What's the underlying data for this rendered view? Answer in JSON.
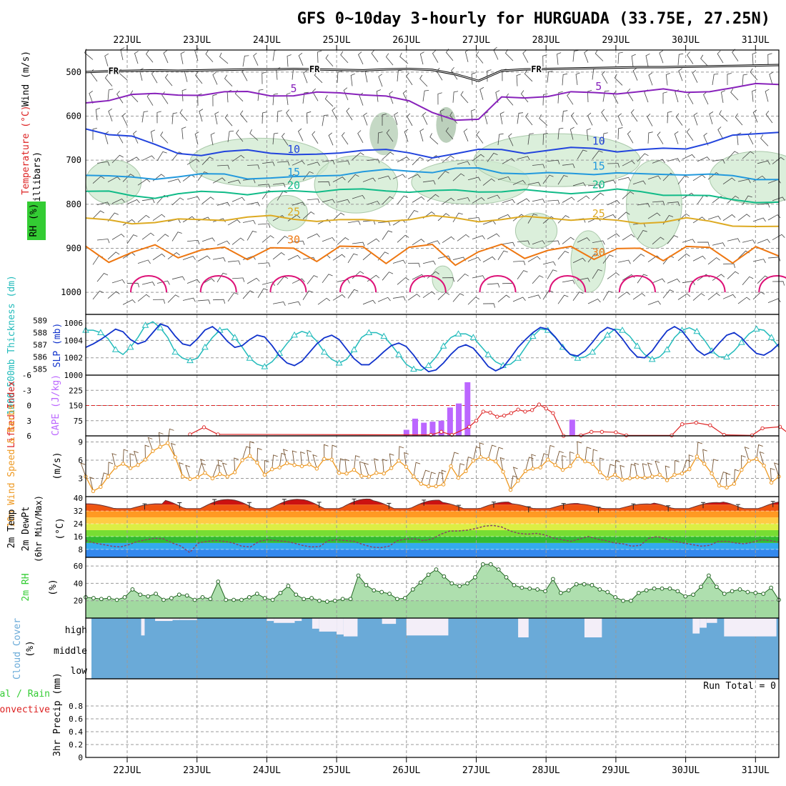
{
  "title": "GFS 0~10day 3-hourly for HURGUADA (33.75E, 27.25N)",
  "dates": [
    "22JUL",
    "23JUL",
    "24JUL",
    "25JUL",
    "26JUL",
    "27JUL",
    "28JUL",
    "29JUL",
    "30JUL",
    "31JUL"
  ],
  "colors": {
    "frame": "#000000",
    "grid": "#999999",
    "cyan": "#22bbbb",
    "blue": "#1133cc",
    "purple": "#bb66ff",
    "red": "#dd2222",
    "orange": "#ee9922",
    "brown": "#775533",
    "green": "#33cc33",
    "rh_fill": "#cfe9cf",
    "cloud": "#6aaad8",
    "cloud_clear": "#f3eef8",
    "t5": "#8822bb",
    "t10": "#2244dd",
    "t15": "#2299dd",
    "t20": "#11bb88",
    "t25": "#ddaa22",
    "t30": "#ee7711",
    "t35": "#dd1177"
  },
  "chart_data": [
    {
      "type": "contour",
      "panel": "upper-air",
      "labels": {
        "wind": "Wind (m/s)",
        "temperature": "Temperature (°C)",
        "rh": "RH (%)",
        "axis": "(millibars)"
      },
      "yticks": [
        500,
        600,
        700,
        800,
        900,
        1000
      ],
      "ylim": [
        450,
        1050
      ],
      "freezing_label": "FR",
      "freezing_level_mb": [
        500,
        498,
        497,
        496,
        497,
        496,
        495,
        494,
        494,
        493,
        494,
        495,
        496,
        494,
        493,
        495,
        505,
        520,
        497,
        494,
        493,
        492,
        491,
        490,
        489,
        489,
        488,
        487,
        486,
        485,
        484
      ],
      "isotherms": [
        {
          "t": 5,
          "label": "5",
          "mb": [
            570,
            560,
            552,
            553,
            550,
            549,
            548,
            547,
            550,
            552,
            550,
            548,
            547,
            555,
            570,
            590,
            605,
            610,
            560,
            555,
            553,
            549,
            548,
            545,
            544,
            543,
            545,
            540,
            538,
            530,
            525
          ]
        },
        {
          "t": 10,
          "label": "10",
          "mb": [
            625,
            640,
            650,
            665,
            680,
            690,
            685,
            675,
            680,
            690,
            690,
            680,
            675,
            680,
            685,
            690,
            685,
            680,
            675,
            680,
            680,
            675,
            670,
            678,
            680,
            675,
            670,
            660,
            648,
            640,
            632
          ]
        },
        {
          "t": 15,
          "label": "15",
          "mb": [
            730,
            738,
            742,
            740,
            735,
            735,
            733,
            738,
            740,
            742,
            735,
            730,
            728,
            725,
            722,
            725,
            722,
            720,
            725,
            730,
            733,
            730,
            728,
            730,
            735,
            730,
            730,
            735,
            738,
            740,
            742
          ]
        },
        {
          "t": 20,
          "label": "20",
          "mb": [
            770,
            775,
            780,
            782,
            778,
            775,
            770,
            775,
            775,
            772,
            768,
            765,
            770,
            770,
            768,
            770,
            772,
            770,
            768,
            770,
            775,
            772,
            770,
            770,
            772,
            775,
            780,
            785,
            788,
            792,
            798
          ]
        },
        {
          "t": 25,
          "label": "25",
          "mb": [
            835,
            838,
            840,
            840,
            838,
            835,
            832,
            830,
            830,
            832,
            835,
            838,
            838,
            835,
            833,
            830,
            832,
            835,
            835,
            832,
            830,
            832,
            835,
            840,
            840,
            838,
            835,
            840,
            845,
            850,
            855
          ]
        },
        {
          "t": 30,
          "label": "30",
          "mb": [
            900,
            930,
            905,
            895,
            925,
            900,
            895,
            930,
            900,
            895,
            930,
            900,
            895,
            930,
            900,
            895,
            935,
            905,
            895,
            925,
            900,
            895,
            930,
            900,
            895,
            930,
            900,
            895,
            930,
            900,
            920
          ]
        }
      ]
    },
    {
      "type": "line",
      "panel": "pressure",
      "labels": {
        "thickness": "1000-500mb Thickness (dm)",
        "slp": "SLP (mb)"
      },
      "thickness_ticks": [
        589,
        588,
        587,
        586,
        585
      ],
      "thickness_ylim": [
        584.5,
        589.5
      ],
      "slp_ticks": [
        1006,
        1004,
        1002,
        1000
      ],
      "slp_ylim": [
        1000,
        1007
      ],
      "thickness": [
        588.2,
        588.2,
        588.0,
        587.5,
        586.6,
        586.2,
        586.8,
        587.6,
        588.6,
        588.9,
        588.4,
        587.6,
        586.4,
        585.9,
        585.7,
        585.9,
        586.8,
        587.6,
        588.2,
        588.3,
        587.6,
        586.8,
        585.9,
        585.4,
        585.2,
        585.6,
        586.3,
        587.1,
        587.8,
        588.1,
        587.9,
        587.3,
        586.4,
        585.8,
        585.5,
        585.8,
        586.6,
        587.6,
        588.0,
        588.0,
        587.7,
        587.0,
        586.2,
        585.4,
        585.0,
        584.9,
        585.3,
        586.0,
        586.9,
        587.6,
        587.9,
        587.9,
        587.6,
        586.9,
        586.2,
        585.6,
        585.3,
        585.4,
        585.9,
        586.8,
        587.7,
        588.3,
        588.2,
        587.6,
        586.8,
        586.2,
        585.9,
        586.0,
        586.4,
        587.1,
        587.8,
        588.3,
        588.2,
        587.7,
        586.9,
        586.2,
        585.8,
        586.0,
        586.6,
        587.6,
        588.2,
        588.4,
        588.1,
        587.4,
        586.5,
        586.0,
        586.0,
        586.5,
        587.2,
        587.9,
        588.3,
        588.2,
        587.6,
        586.8
      ],
      "slp": [
        1003.2,
        1003.6,
        1004.1,
        1004.7,
        1005.3,
        1005.0,
        1004.1,
        1003.6,
        1003.9,
        1004.9,
        1005.9,
        1005.6,
        1004.5,
        1003.6,
        1003.4,
        1004.2,
        1005.2,
        1005.6,
        1004.9,
        1003.9,
        1003.2,
        1003.4,
        1004.1,
        1004.6,
        1004.4,
        1003.4,
        1002.2,
        1001.4,
        1001.1,
        1001.6,
        1002.6,
        1003.6,
        1004.3,
        1004.6,
        1004.1,
        1003.0,
        1001.9,
        1001.2,
        1001.2,
        1001.9,
        1002.7,
        1003.4,
        1003.7,
        1003.3,
        1002.3,
        1001.1,
        1000.4,
        1000.6,
        1001.4,
        1002.4,
        1003.2,
        1003.5,
        1003.1,
        1002.1,
        1001.0,
        1000.5,
        1000.9,
        1002.0,
        1003.2,
        1004.1,
        1004.9,
        1005.5,
        1005.3,
        1004.4,
        1003.3,
        1002.4,
        1002.2,
        1002.8,
        1003.8,
        1004.9,
        1005.5,
        1005.2,
        1004.2,
        1003.0,
        1002.1,
        1002.0,
        1002.8,
        1004.0,
        1005.1,
        1005.6,
        1005.1,
        1004.0,
        1002.9,
        1002.3,
        1002.7,
        1003.7,
        1004.6,
        1004.9,
        1004.3,
        1003.3,
        1002.5,
        1002.3,
        1002.8,
        1003.6
      ]
    },
    {
      "type": "bar",
      "panel": "stability",
      "labels": {
        "li": "Lifted Index",
        "cape": "CAPE (J/kg)"
      },
      "li_ticks": [
        "-6",
        "-3",
        "0",
        "3",
        "6"
      ],
      "cape_ticks": [
        225,
        150,
        75
      ],
      "cape_ylim": [
        0,
        300
      ],
      "cape_dates": [
        "26JUL 03Z",
        "26JUL 06Z",
        "26JUL 09Z",
        "26JUL 12Z",
        "26JUL 15Z",
        "26JUL 18Z",
        "26JUL 21Z",
        "27JUL 00Z",
        "28JUL 06Z",
        "28JUL 09Z"
      ],
      "cape": [
        30,
        85,
        65,
        70,
        75,
        140,
        160,
        265,
        80,
        5
      ],
      "li_curve": [
        {
          "t": 0.9,
          "li": 5.7
        },
        {
          "t": 1.1,
          "li": 4.3
        },
        {
          "t": 1.3,
          "li": 5.7
        },
        {
          "t": 4.35,
          "li": 5.8
        },
        {
          "t": 4.5,
          "li": 5.2
        },
        {
          "t": 4.65,
          "li": 5.8
        },
        {
          "t": 4.9,
          "li": 4.2
        },
        {
          "t": 5.0,
          "li": 3.0
        },
        {
          "t": 5.1,
          "li": 1.2
        },
        {
          "t": 5.2,
          "li": 1.4
        },
        {
          "t": 5.3,
          "li": 2.2
        },
        {
          "t": 5.4,
          "li": 2.0
        },
        {
          "t": 5.5,
          "li": 1.5
        },
        {
          "t": 5.6,
          "li": 0.8
        },
        {
          "t": 5.7,
          "li": 1.2
        },
        {
          "t": 5.8,
          "li": 0.9
        },
        {
          "t": 5.9,
          "li": -0.2
        },
        {
          "t": 6.0,
          "li": 0.6
        },
        {
          "t": 6.1,
          "li": 1.5
        },
        {
          "t": 6.25,
          "li": 6.0
        },
        {
          "t": 6.5,
          "li": 5.9
        },
        {
          "t": 6.65,
          "li": 5.2
        },
        {
          "t": 6.8,
          "li": 5.2
        },
        {
          "t": 7.0,
          "li": 5.3
        },
        {
          "t": 7.15,
          "li": 5.9
        },
        {
          "t": 7.8,
          "li": 5.9
        },
        {
          "t": 7.95,
          "li": 3.7
        },
        {
          "t": 8.15,
          "li": 3.4
        },
        {
          "t": 8.35,
          "li": 3.9
        },
        {
          "t": 8.55,
          "li": 5.8
        },
        {
          "t": 8.95,
          "li": 5.9
        },
        {
          "t": 9.1,
          "li": 4.5
        },
        {
          "t": 9.35,
          "li": 4.2
        },
        {
          "t": 9.5,
          "li": 5.8
        },
        {
          "t": 10.0,
          "li": 5.9
        },
        {
          "t": 10.1,
          "li": 5.5
        },
        {
          "t": 10.25,
          "li": 5.9
        }
      ]
    },
    {
      "type": "line",
      "panel": "wind10m",
      "labels": {
        "title": "10m Wind Speed & Barbs",
        "units": "(m/s)"
      },
      "yticks": [
        9,
        6,
        3
      ],
      "ylim": [
        0,
        10
      ],
      "speed": [
        3.3,
        0.9,
        1.6,
        3.3,
        4.8,
        5.4,
        4.7,
        5.2,
        6.1,
        7.5,
        8.2,
        8.8,
        6.5,
        3.3,
        2.9,
        3.2,
        3.9,
        3.0,
        3.7,
        3.3,
        4.0,
        6.0,
        6.7,
        5.6,
        3.6,
        4.5,
        4.8,
        5.5,
        5.2,
        5.0,
        5.3,
        4.6,
        6.2,
        6.1,
        3.9,
        3.8,
        4.4,
        3.4,
        3.3,
        3.9,
        3.8,
        4.7,
        5.9,
        4.9,
        3.3,
        2.1,
        1.7,
        1.7,
        2.0,
        5.0,
        3.1,
        4.2,
        5.9,
        6.5,
        6.2,
        5.8,
        4.1,
        1.1,
        2.6,
        4.2,
        4.6,
        4.8,
        6.1,
        5.2,
        4.4,
        5.0,
        6.7,
        5.8,
        5.4,
        4.0,
        3.0,
        3.6,
        2.8,
        3.0,
        3.2,
        3.1,
        3.3,
        3.6,
        2.7,
        3.6,
        3.8,
        4.5,
        6.6,
        5.4,
        3.8,
        1.8,
        1.5,
        2.1,
        4.4,
        5.9,
        6.2,
        5.1,
        2.3,
        3.3
      ]
    },
    {
      "type": "area",
      "panel": "temperature",
      "labels": {
        "temp": "2m Temp",
        "dewpt": "2m DewPt",
        "minmax": "(6hr Min/Max)",
        "units": "(°C)"
      },
      "yticks": [
        40,
        32,
        24,
        16,
        8
      ],
      "ylim": [
        3,
        41
      ],
      "temp_days": [
        {
          "t": 0.0,
          "tmax": 36.5
        },
        {
          "t": 0.75,
          "tmax": 39.2
        },
        {
          "t": 1.75,
          "tmax": 39.3
        },
        {
          "t": 2.75,
          "tmax": 39.5
        },
        {
          "t": 3.75,
          "tmax": 38.8
        },
        {
          "t": 4.75,
          "tmax": 37.6
        },
        {
          "t": 5.75,
          "tmax": 36.7
        },
        {
          "t": 6.75,
          "tmax": 36.4
        },
        {
          "t": 7.75,
          "tmax": 37.3
        },
        {
          "t": 8.75,
          "tmax": 38.0
        },
        {
          "t": 9.7,
          "tmax": 38.2
        }
      ],
      "tmin": 33.5,
      "dewpt": [
        13.5,
        12,
        11,
        10,
        9.5,
        11,
        13,
        14,
        15,
        14.5,
        12,
        10,
        6,
        12,
        13,
        13.5,
        13,
        12,
        10,
        9.5,
        13,
        14,
        13.5,
        13,
        12,
        10.5,
        9.5,
        9.8,
        13.5,
        14,
        13.5,
        13,
        11,
        9.5,
        9.0,
        10,
        13.5,
        14.5,
        14.5,
        13.5,
        14.5,
        17.5,
        19.5,
        19.5,
        20.0,
        21.0,
        22.5,
        23.0,
        22.0,
        19.5,
        18,
        17.5,
        18,
        17,
        15,
        14,
        13,
        14.5,
        16,
        14.5,
        13.5,
        12,
        11.5,
        10,
        10.5,
        15,
        16,
        14.5,
        13,
        12,
        11,
        10,
        10.5,
        13,
        13,
        12,
        11.5,
        12.5,
        14,
        13.5,
        12.5
      ]
    },
    {
      "type": "area",
      "panel": "rh2m",
      "labels": {
        "title": "2m RH",
        "units": "(%)"
      },
      "yticks": [
        60,
        40,
        20
      ],
      "ylim": [
        0,
        70
      ],
      "rh": [
        24,
        23,
        22,
        23,
        21,
        24,
        33,
        27,
        25,
        28,
        21,
        23,
        27,
        26,
        21,
        24,
        22,
        42,
        21,
        21,
        21,
        24,
        28,
        23,
        21,
        29,
        37,
        27,
        22,
        23,
        20,
        19,
        20,
        22,
        22,
        49,
        38,
        32,
        30,
        28,
        22,
        23,
        33,
        41,
        50,
        56,
        48,
        40,
        37,
        40,
        47,
        62,
        62,
        56,
        47,
        38,
        35,
        34,
        33,
        31,
        45,
        29,
        32,
        39,
        39,
        38,
        33,
        30,
        24,
        20,
        20,
        29,
        32,
        34,
        34,
        34,
        31,
        25,
        27,
        36,
        49,
        36,
        28,
        31,
        33,
        30,
        29,
        28,
        35,
        21
      ]
    },
    {
      "type": "bar",
      "panel": "cloud",
      "labels": {
        "title": "Cloud Cover",
        "units": "(%)",
        "high": "high",
        "middle": "middle",
        "low": "low"
      },
      "clear_high": [
        {
          "from": 0.2,
          "to": 0.25,
          "depth": 0.9
        },
        {
          "from": 0.4,
          "to": 0.65,
          "depth": 0.15
        },
        {
          "from": 0.65,
          "to": 0.75,
          "depth": 0.1
        },
        {
          "from": 0.75,
          "to": 1.0,
          "depth": 0.1
        },
        {
          "from": 2.0,
          "to": 2.1,
          "depth": 0.15
        },
        {
          "from": 2.1,
          "to": 2.4,
          "depth": 0.25
        },
        {
          "from": 2.4,
          "to": 2.5,
          "depth": 0.15
        },
        {
          "from": 2.65,
          "to": 2.75,
          "depth": 0.55
        },
        {
          "from": 2.75,
          "to": 3.0,
          "depth": 0.7
        },
        {
          "from": 3.0,
          "to": 3.1,
          "depth": 0.85
        },
        {
          "from": 3.1,
          "to": 3.3,
          "depth": 0.95
        },
        {
          "from": 3.65,
          "to": 3.85,
          "depth": 0.3
        },
        {
          "from": 4.0,
          "to": 4.6,
          "depth": 0.9
        },
        {
          "from": 5.6,
          "to": 5.75,
          "depth": 1.0
        },
        {
          "from": 6.55,
          "to": 6.8,
          "depth": 1.0
        },
        {
          "from": 8.1,
          "to": 8.2,
          "depth": 0.8
        },
        {
          "from": 8.2,
          "to": 8.3,
          "depth": 0.5
        },
        {
          "from": 8.3,
          "to": 8.45,
          "depth": 0.25
        },
        {
          "from": 8.55,
          "to": 9.3,
          "depth": 0.95
        }
      ]
    },
    {
      "type": "bar",
      "panel": "precip",
      "labels": {
        "title": "3hr Precip (mm)",
        "total": "Total / Rain",
        "convective": "Convective",
        "run_total": "Run Total = 0"
      },
      "yticks": [
        "0.8",
        "0.6",
        "0.4",
        "0.2",
        "0"
      ],
      "ylim": [
        0,
        1
      ],
      "values": []
    }
  ]
}
